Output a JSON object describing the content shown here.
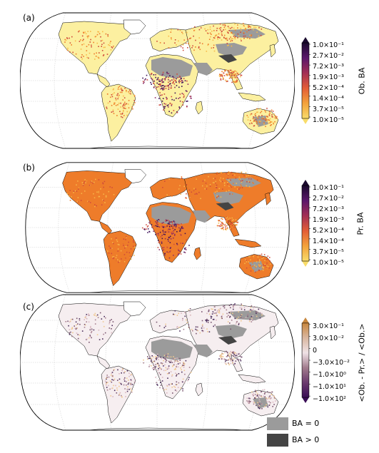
{
  "panels": [
    {
      "label": "(a)",
      "cbar_title": "Ob. BA",
      "ticks": [
        "1.0×10⁻¹",
        "2.7×10⁻²",
        "7.2×10⁻³",
        "1.9×10⁻³",
        "5.2×10⁻⁴",
        "1.4×10⁻⁴",
        "3.7×10⁻⁵",
        "1.0×10⁻⁵"
      ],
      "palette": [
        "#fcf0a0",
        "#f7b94a",
        "#ee7c2a",
        "#cf4a3a",
        "#8a2a63",
        "#3a0d56"
      ]
    },
    {
      "label": "(b)",
      "cbar_title": "Pr. BA",
      "ticks": [
        "1.0×10⁻¹",
        "2.7×10⁻²",
        "7.2×10⁻³",
        "1.9×10⁻³",
        "5.2×10⁻⁴",
        "1.4×10⁻⁴",
        "3.7×10⁻⁵",
        "1.0×10⁻⁵"
      ],
      "palette": [
        "#fcf0a0",
        "#f7b94a",
        "#ee7c2a",
        "#cf4a3a",
        "#8a2a63",
        "#3a0d56"
      ]
    },
    {
      "label": "(c)",
      "cbar_title": "<Ob. - Pr.> / <Ob.>",
      "ticks": [
        "3.0×10⁻¹",
        "3.0×10⁻²",
        "0",
        "−3.0×10⁻²",
        "−1.0×10⁰",
        "−1.0×10¹",
        "−1.0×10²"
      ],
      "palette": [
        "#f6e7ea",
        "#d9b6bf",
        "#a77f8f",
        "#7a5570",
        "#4b2e5c",
        "#f0c890"
      ]
    }
  ],
  "legend": {
    "zero_label": "BA = 0",
    "zero_color": "#9b9b9b",
    "positive_label": "BA > 0",
    "positive_color": "#444444"
  }
}
